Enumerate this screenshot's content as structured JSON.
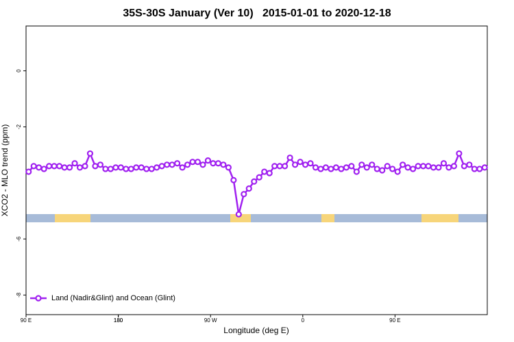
{
  "chart_data": {
    "type": "line",
    "title": "35S-30S January (Ver 10)   2015-01-01 to 2020-12-18",
    "x_label": "Longitude (deg E)",
    "y_label": "XCO2 - MLO trend (ppm)",
    "x": [
      92.5,
      97.5,
      102.5,
      107.5,
      112.5,
      117.5,
      122.5,
      127.5,
      132.5,
      137.5,
      142.5,
      147.5,
      152.5,
      157.5,
      162.5,
      167.5,
      172.5,
      177.5,
      182.5,
      187.5,
      192.5,
      197.5,
      202.5,
      207.5,
      212.5,
      217.5,
      222.5,
      227.5,
      232.5,
      237.5,
      242.5,
      247.5,
      252.5,
      257.5,
      262.5,
      267.5,
      272.5,
      277.5,
      282.5,
      287.5,
      292.5,
      297.5,
      302.5,
      307.5,
      312.5,
      317.5,
      322.5,
      327.5,
      332.5,
      337.5,
      342.5,
      347.5,
      352.5,
      357.5,
      362.5,
      367.5,
      372.5,
      377.5,
      382.5,
      387.5,
      392.5,
      397.5,
      402.5,
      407.5,
      412.5,
      417.5,
      422.5,
      427.5,
      432.5,
      437.5,
      442.5,
      447.5,
      452.5,
      457.5,
      462.5,
      467.5,
      472.5,
      477.5,
      482.5,
      487.5,
      492.5,
      497.5,
      502.5,
      507.5,
      512.5,
      517.5,
      522.5,
      527.5,
      532.5,
      537.5
    ],
    "series": [
      {
        "name": "Land (Nadir&Glint) and Ocean (Glint)",
        "color": "#a020f0",
        "values": [
          -3.6,
          -3.4,
          -3.45,
          -3.5,
          -3.4,
          -3.4,
          -3.4,
          -3.45,
          -3.45,
          -3.3,
          -3.45,
          -3.4,
          -2.95,
          -3.4,
          -3.35,
          -3.5,
          -3.5,
          -3.45,
          -3.45,
          -3.5,
          -3.5,
          -3.45,
          -3.45,
          -3.5,
          -3.5,
          -3.45,
          -3.4,
          -3.35,
          -3.35,
          -3.3,
          -3.45,
          -3.35,
          -3.25,
          -3.25,
          -3.35,
          -3.2,
          -3.3,
          -3.3,
          -3.35,
          -3.45,
          -3.9,
          -5.12,
          -4.4,
          -4.2,
          -3.95,
          -3.8,
          -3.6,
          -3.65,
          -3.4,
          -3.4,
          -3.4,
          -3.1,
          -3.35,
          -3.25,
          -3.35,
          -3.3,
          -3.45,
          -3.5,
          -3.45,
          -3.5,
          -3.45,
          -3.5,
          -3.45,
          -3.4,
          -3.6,
          -3.35,
          -3.45,
          -3.35,
          -3.5,
          -3.55,
          -3.4,
          -3.5,
          -3.6,
          -3.35,
          -3.45,
          -3.5,
          -3.4,
          -3.4,
          -3.4,
          -3.45,
          -3.45,
          -3.3,
          -3.45,
          -3.4,
          -2.95,
          -3.4,
          -3.35,
          -3.5,
          -3.5,
          -3.45
        ]
      }
    ],
    "xlim": [
      90,
      540
    ],
    "xticks": [
      {
        "value": 90,
        "label": "90 E"
      },
      180,
      {
        "value": 270,
        "label": "90 W"
      },
      {
        "value": 360,
        "label": "0"
      },
      {
        "value": 450,
        "label": "90 E"
      },
      180.0001
    ],
    "ylim": [
      -8.7,
      1.6
    ],
    "yticks": [
      0,
      -2,
      -6,
      -8
    ],
    "legend": "bottom-left"
  }
}
